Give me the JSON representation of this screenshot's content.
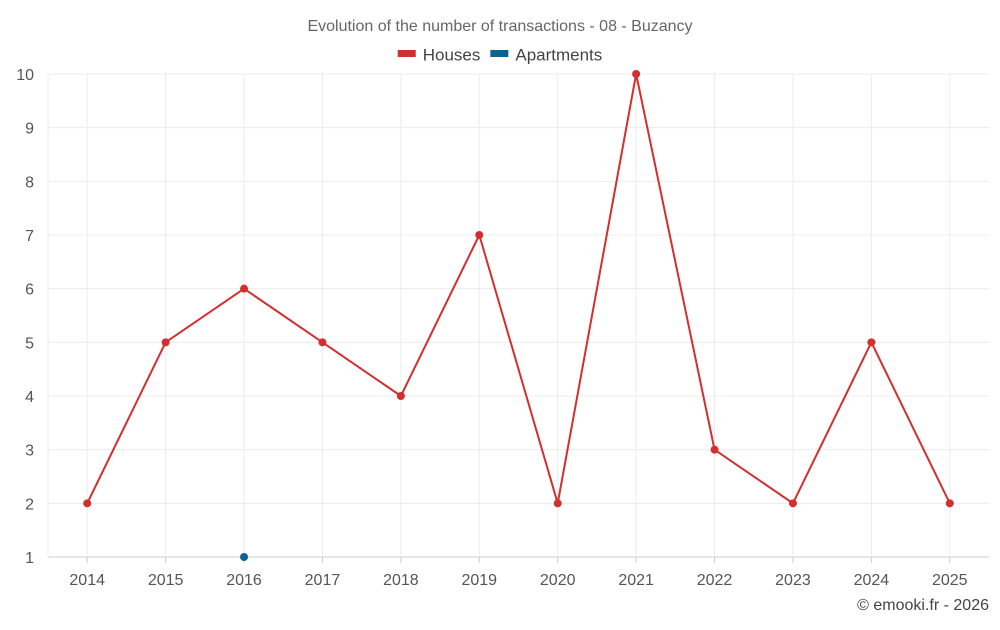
{
  "chart_data": {
    "type": "line",
    "title": "Evolution of the number of transactions - 08 - Buzancy",
    "xlabel": "",
    "ylabel": "",
    "x": [
      "2014",
      "2015",
      "2016",
      "2017",
      "2018",
      "2019",
      "2020",
      "2021",
      "2022",
      "2023",
      "2024",
      "2025"
    ],
    "ylim": [
      1,
      10
    ],
    "yticks": [
      1,
      2,
      3,
      4,
      5,
      6,
      7,
      8,
      9,
      10
    ],
    "grid": true,
    "legend_position": "top-center",
    "series": [
      {
        "name": "Houses",
        "color": "#d32f2f",
        "values": [
          2,
          5,
          6,
          5,
          4,
          7,
          2,
          10,
          3,
          2,
          5,
          2
        ]
      },
      {
        "name": "Apartments",
        "color": "#0b6394",
        "values": [
          null,
          null,
          1,
          null,
          null,
          null,
          null,
          null,
          null,
          null,
          null,
          null
        ]
      }
    ]
  },
  "credit": "© emooki.fr - 2026"
}
